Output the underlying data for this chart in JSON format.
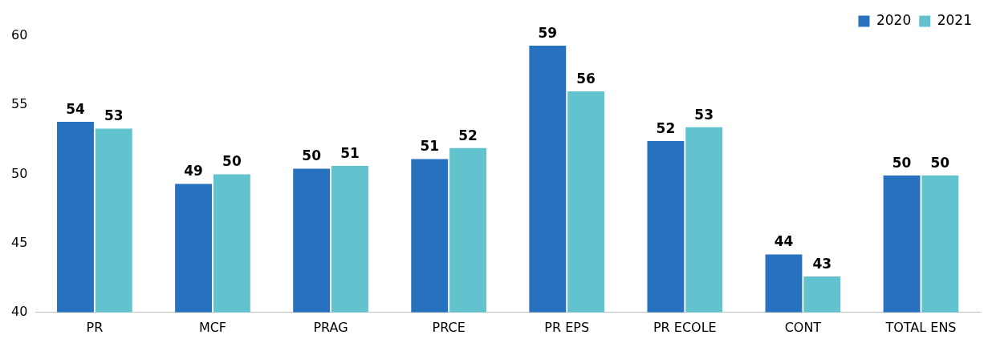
{
  "chart_data": {
    "type": "bar",
    "categories": [
      "PR",
      "MCF",
      "PRAG",
      "PRCE",
      "PR EPS",
      "PR ECOLE",
      "CONT",
      "TOTAL ENS"
    ],
    "series": [
      {
        "name": "2020",
        "color": "#2771be",
        "values": [
          53.8,
          49.3,
          50.4,
          51.1,
          59.3,
          52.4,
          44.2,
          49.9
        ],
        "value_labels": [
          "54",
          "49",
          "50",
          "51",
          "59",
          "52",
          "44",
          "50"
        ]
      },
      {
        "name": "2021",
        "color": "#62c3cf",
        "values": [
          53.3,
          50.0,
          50.6,
          51.9,
          56.0,
          53.4,
          42.6,
          49.9
        ],
        "value_labels": [
          "53",
          "50",
          "51",
          "52",
          "56",
          "53",
          "43",
          "50"
        ]
      }
    ],
    "ylim": [
      40,
      60
    ],
    "yticks": [
      40,
      45,
      50,
      55,
      60
    ],
    "grid": false,
    "legend": "top right"
  }
}
